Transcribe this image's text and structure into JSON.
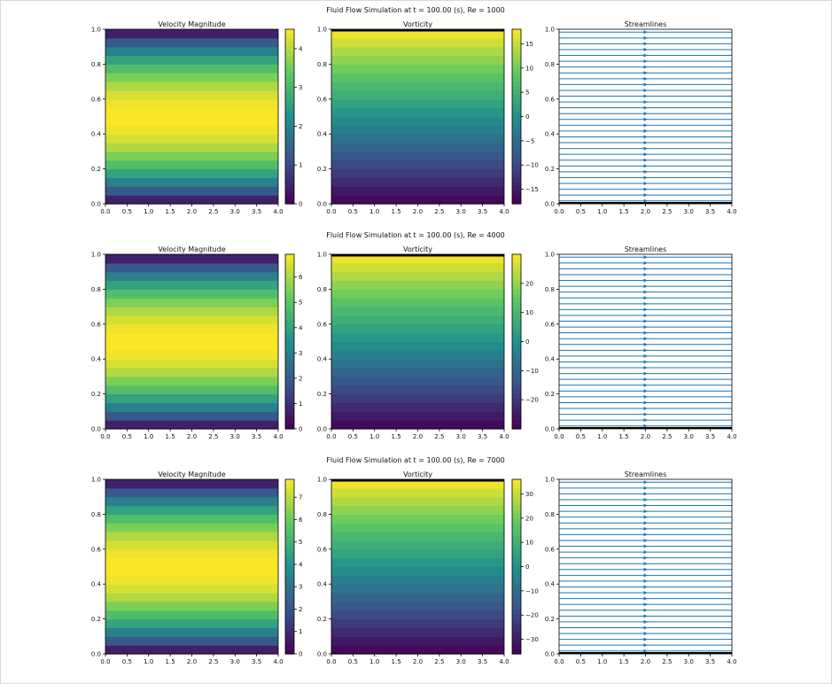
{
  "figure": {
    "colormap": [
      "#440154",
      "#3b528b",
      "#21918c",
      "#5ec962",
      "#fde725"
    ],
    "stream_color": "#1f77b4",
    "frame_color": "#000000"
  },
  "chart_data": [
    {
      "type": "heatmap",
      "suptitle": "Fluid Flow Simulation at t = 100.00 (s), Re = 1000",
      "panels": [
        {
          "kind": "heatmap",
          "title": "Velocity Magnitude",
          "xlim": [
            0,
            4
          ],
          "ylim": [
            0,
            1
          ],
          "xticks": [
            "0.0",
            "0.5",
            "1.0",
            "1.5",
            "2.0",
            "2.5",
            "3.0",
            "3.5",
            "4.0"
          ],
          "yticks": [
            "0.0",
            "0.2",
            "0.4",
            "0.6",
            "0.8",
            "1.0"
          ],
          "field": "parabolic",
          "levels": 20,
          "vmin": 0,
          "vmax": 4.5,
          "colorbar_ticks": [
            0,
            1,
            2,
            3,
            4
          ]
        },
        {
          "kind": "heatmap",
          "title": "Vorticity",
          "xlim": [
            0,
            4
          ],
          "ylim": [
            0,
            1
          ],
          "xticks": [
            "0.0",
            "0.5",
            "1.0",
            "1.5",
            "2.0",
            "2.5",
            "3.0",
            "3.5",
            "4.0"
          ],
          "yticks": [
            "0.0",
            "0.2",
            "0.4",
            "0.6",
            "0.8",
            "1.0"
          ],
          "field": "linear",
          "levels": 20,
          "vmin": -18,
          "vmax": 18,
          "colorbar_ticks": [
            -15,
            -10,
            -5,
            0,
            5,
            10,
            15
          ]
        },
        {
          "kind": "streamlines",
          "title": "Streamlines",
          "xlim": [
            0,
            4
          ],
          "ylim": [
            0,
            1
          ],
          "xticks": [
            "0.0",
            "0.5",
            "1.0",
            "1.5",
            "2.0",
            "2.5",
            "3.0",
            "3.5",
            "4.0"
          ],
          "yticks": [
            "0.0",
            "0.2",
            "0.4",
            "0.6",
            "0.8",
            "1.0"
          ],
          "line_count": 30,
          "arrow_x": 2.0
        }
      ]
    },
    {
      "type": "heatmap",
      "suptitle": "Fluid Flow Simulation at t = 100.00 (s), Re = 4000",
      "panels": [
        {
          "kind": "heatmap",
          "title": "Velocity Magnitude",
          "xlim": [
            0,
            4
          ],
          "ylim": [
            0,
            1
          ],
          "xticks": [
            "0.0",
            "0.5",
            "1.0",
            "1.5",
            "2.0",
            "2.5",
            "3.0",
            "3.5",
            "4.0"
          ],
          "yticks": [
            "0.0",
            "0.2",
            "0.4",
            "0.6",
            "0.8",
            "1.0"
          ],
          "field": "parabolic",
          "levels": 20,
          "vmin": 0,
          "vmax": 6.9,
          "colorbar_ticks": [
            0,
            1,
            2,
            3,
            4,
            5,
            6
          ]
        },
        {
          "kind": "heatmap",
          "title": "Vorticity",
          "xlim": [
            0,
            4
          ],
          "ylim": [
            0,
            1
          ],
          "xticks": [
            "0.0",
            "0.5",
            "1.0",
            "1.5",
            "2.0",
            "2.5",
            "3.0",
            "3.5",
            "4.0"
          ],
          "yticks": [
            "0.0",
            "0.2",
            "0.4",
            "0.6",
            "0.8",
            "1.0"
          ],
          "field": "linear",
          "levels": 20,
          "vmin": -30,
          "vmax": 30,
          "colorbar_ticks": [
            -20,
            -10,
            0,
            10,
            20
          ]
        },
        {
          "kind": "streamlines",
          "title": "Streamlines",
          "xlim": [
            0,
            4
          ],
          "ylim": [
            0,
            1
          ],
          "xticks": [
            "0.0",
            "0.5",
            "1.0",
            "1.5",
            "2.0",
            "2.5",
            "3.0",
            "3.5",
            "4.0"
          ],
          "yticks": [
            "0.0",
            "0.2",
            "0.4",
            "0.6",
            "0.8",
            "1.0"
          ],
          "line_count": 30,
          "arrow_x": 2.0
        }
      ]
    },
    {
      "type": "heatmap",
      "suptitle": "Fluid Flow Simulation at t = 100.00 (s), Re = 7000",
      "panels": [
        {
          "kind": "heatmap",
          "title": "Velocity Magnitude",
          "xlim": [
            0,
            4
          ],
          "ylim": [
            0,
            1
          ],
          "xticks": [
            "0.0",
            "0.5",
            "1.0",
            "1.5",
            "2.0",
            "2.5",
            "3.0",
            "3.5",
            "4.0"
          ],
          "yticks": [
            "0.0",
            "0.2",
            "0.4",
            "0.6",
            "0.8",
            "1.0"
          ],
          "field": "parabolic",
          "levels": 20,
          "vmin": 0,
          "vmax": 7.8,
          "colorbar_ticks": [
            0,
            1,
            2,
            3,
            4,
            5,
            6,
            7
          ]
        },
        {
          "kind": "heatmap",
          "title": "Vorticity",
          "xlim": [
            0,
            4
          ],
          "ylim": [
            0,
            1
          ],
          "xticks": [
            "0.0",
            "0.5",
            "1.0",
            "1.5",
            "2.0",
            "2.5",
            "3.0",
            "3.5",
            "4.0"
          ],
          "yticks": [
            "0.0",
            "0.2",
            "0.4",
            "0.6",
            "0.8",
            "1.0"
          ],
          "field": "linear",
          "levels": 20,
          "vmin": -36,
          "vmax": 36,
          "colorbar_ticks": [
            -30,
            -20,
            -10,
            0,
            10,
            20,
            30
          ]
        },
        {
          "kind": "streamlines",
          "title": "Streamlines",
          "xlim": [
            0,
            4
          ],
          "ylim": [
            0,
            1
          ],
          "xticks": [
            "0.0",
            "0.5",
            "1.0",
            "1.5",
            "2.0",
            "2.5",
            "3.0",
            "3.5",
            "4.0"
          ],
          "yticks": [
            "0.0",
            "0.2",
            "0.4",
            "0.6",
            "0.8",
            "1.0"
          ],
          "line_count": 30,
          "arrow_x": 2.0
        }
      ]
    }
  ]
}
